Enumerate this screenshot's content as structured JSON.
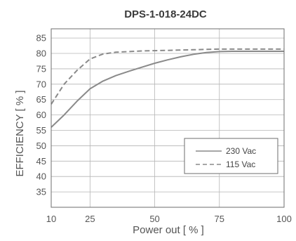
{
  "chart_data": {
    "type": "line",
    "title": "DPS-1-018-24DC",
    "xlabel": "Power  out [ % ]",
    "ylabel": "EFFICIENCY [ % ]",
    "xlim": [
      10,
      100
    ],
    "ylim": [
      30,
      88
    ],
    "x_ticks": [
      10,
      25,
      50,
      75,
      100
    ],
    "x_tick_labels": [
      "10",
      "25",
      "50",
      "75",
      "100"
    ],
    "y_ticks": [
      35,
      40,
      45,
      50,
      55,
      60,
      65,
      70,
      75,
      80,
      85
    ],
    "y_tick_labels": [
      "35",
      "40",
      "45",
      "50",
      "55",
      "60",
      "65",
      "70",
      "75",
      "80",
      "85"
    ],
    "grid": true,
    "legend_position": "bottom-right",
    "series": [
      {
        "name": "230 Vac",
        "style": "solid",
        "color": "#8a8a8a",
        "x": [
          10,
          15,
          20,
          25,
          30,
          35,
          40,
          45,
          50,
          55,
          60,
          65,
          70,
          75,
          80,
          85,
          90,
          95,
          100
        ],
        "y": [
          56,
          60,
          64.5,
          68.5,
          71,
          72.8,
          74.2,
          75.5,
          76.8,
          77.9,
          78.9,
          79.7,
          80.3,
          80.6,
          80.7,
          80.7,
          80.7,
          80.7,
          80.7
        ]
      },
      {
        "name": "115 Vac",
        "style": "dashed",
        "color": "#8a8a8a",
        "x": [
          10,
          15,
          20,
          25,
          30,
          35,
          40,
          45,
          50,
          55,
          60,
          65,
          70,
          75,
          80,
          85,
          90,
          95,
          100
        ],
        "y": [
          63.5,
          70,
          74.5,
          78.2,
          79.8,
          80.4,
          80.6,
          80.8,
          80.9,
          81,
          81.1,
          81.2,
          81.3,
          81.4,
          81.4,
          81.4,
          81.4,
          81.4,
          81.4
        ]
      }
    ]
  }
}
